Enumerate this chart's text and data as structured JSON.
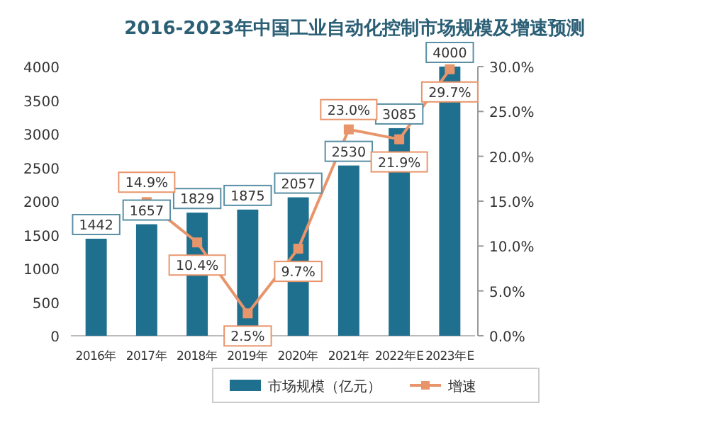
{
  "chart_data": {
    "type": "bar",
    "title": "2016-2023年中国工业自动化控制市场规模及增速预测",
    "categories": [
      "2016年",
      "2017年",
      "2018年",
      "2019年",
      "2020年",
      "2021年",
      "2022年E",
      "2023年E"
    ],
    "series": [
      {
        "name": "市场规模（亿元）",
        "color": "#1f6f8f",
        "values": [
          1442,
          1657,
          1829,
          1875,
          2057,
          2530,
          3085,
          4000
        ],
        "value_labels": [
          "1442",
          "1657",
          "1829",
          "1875",
          "2057",
          "2530",
          "3085",
          "4000"
        ]
      },
      {
        "name": "增速",
        "type": "line",
        "axis": "y2",
        "color": "#e8956b",
        "marker": "square",
        "values": [
          null,
          14.9,
          10.4,
          2.5,
          9.7,
          23.0,
          21.9,
          29.7
        ],
        "value_labels": [
          null,
          "14.9%",
          "10.4%",
          "2.5%",
          "9.7%",
          "23.0%",
          "21.9%",
          "29.7%"
        ]
      }
    ],
    "ylim": [
      0,
      4000
    ],
    "yticks": [
      0,
      500,
      1000,
      1500,
      2000,
      2500,
      3000,
      3500,
      4000
    ],
    "y2lim": [
      0,
      30
    ],
    "y2ticks": [
      {
        "value": 0,
        "label": "0.0%"
      },
      {
        "value": 5,
        "label": "5.0%"
      },
      {
        "value": 10,
        "label": "10.0%"
      },
      {
        "value": 15,
        "label": "15.0%"
      },
      {
        "value": 20,
        "label": "20.0%"
      },
      {
        "value": 25,
        "label": "25.0%"
      },
      {
        "value": 30,
        "label": "30.0%"
      }
    ],
    "legend": "bottom",
    "grid": false
  }
}
